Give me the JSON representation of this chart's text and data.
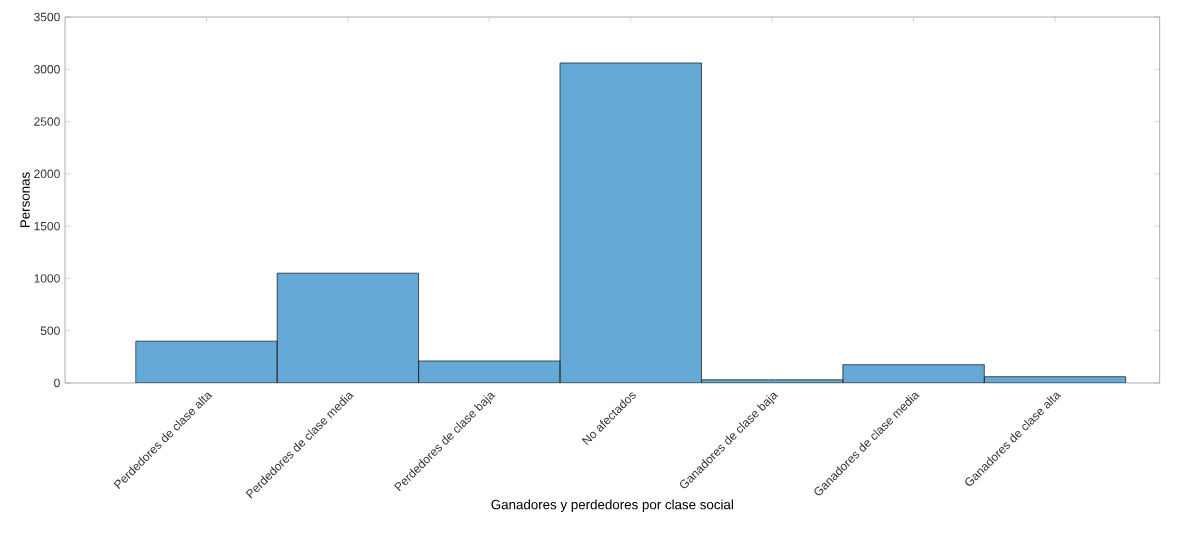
{
  "chart_data": {
    "type": "bar",
    "xlabel": "Ganadores y perdedores por clase social",
    "ylabel": "Personas",
    "categories": [
      "Perdedores de clase alta",
      "Perdedores de clase media",
      "Perdedores de clase baja",
      "No afectados",
      "Ganadores de clase baja",
      "Ganadores de clase media",
      "Ganadores de clase alta"
    ],
    "values": [
      400,
      1050,
      210,
      3060,
      30,
      175,
      60
    ],
    "color": "#65a9d7",
    "ylim": [
      0,
      3500
    ],
    "yticks": [
      0,
      500,
      1000,
      1500,
      2000,
      2500,
      3000,
      3500
    ]
  }
}
